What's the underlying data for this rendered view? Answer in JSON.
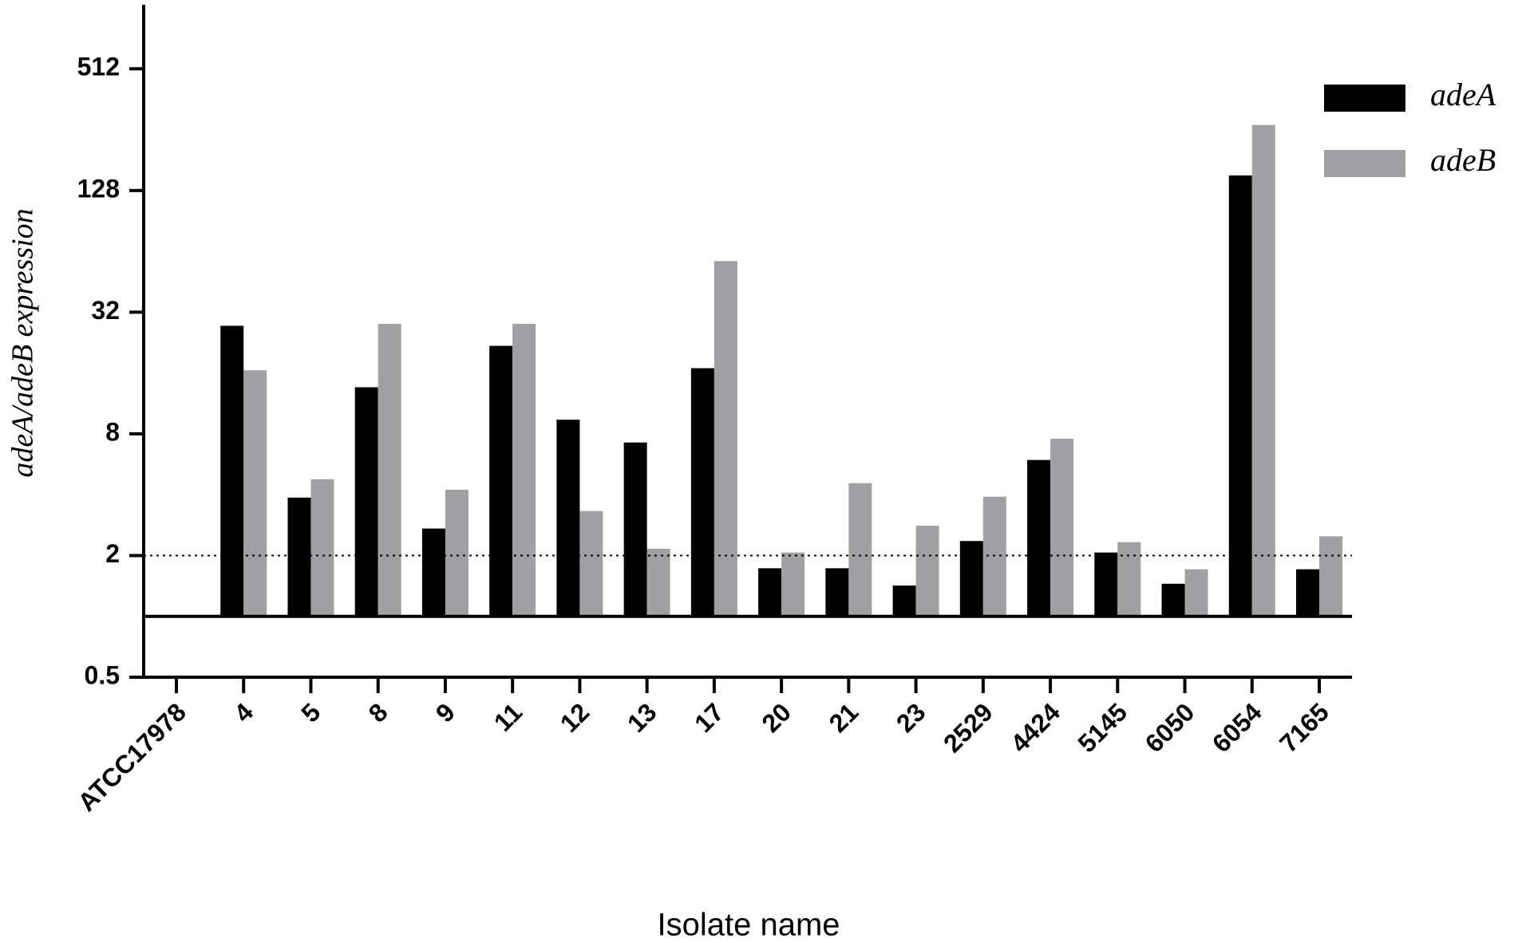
{
  "chart_data": {
    "type": "bar",
    "x_label": "Isolate name",
    "y_label": "adeA/adeB expression",
    "categories": [
      "ATCC17978",
      "4",
      "5",
      "8",
      "9",
      "11",
      "12",
      "13",
      "17",
      "20",
      "21",
      "23",
      "2529",
      "4424",
      "5145",
      "6050",
      "6054",
      "7165"
    ],
    "series": [
      {
        "name": "adeA",
        "color": "#000000",
        "values": [
          1,
          27.4,
          3.87,
          13.6,
          2.72,
          21.8,
          9.4,
          7.25,
          16.9,
          1.73,
          1.73,
          1.42,
          2.36,
          5.94,
          2.07,
          1.45,
          152,
          1.71
        ]
      },
      {
        "name": "adeB",
        "color": "#a0a0a4",
        "values": [
          1,
          16.5,
          4.77,
          28,
          4.23,
          28,
          3.32,
          2.16,
          57.3,
          2.07,
          4.56,
          2.81,
          3.91,
          7.57,
          2.33,
          1.71,
          270,
          2.49
        ]
      }
    ],
    "log_scale": 2,
    "baseline": 1,
    "reference_line": 2,
    "ylim": [
      0.5,
      1024
    ],
    "yticks": [
      0.5,
      2,
      8,
      32,
      128,
      512
    ],
    "legend": "top-right"
  }
}
